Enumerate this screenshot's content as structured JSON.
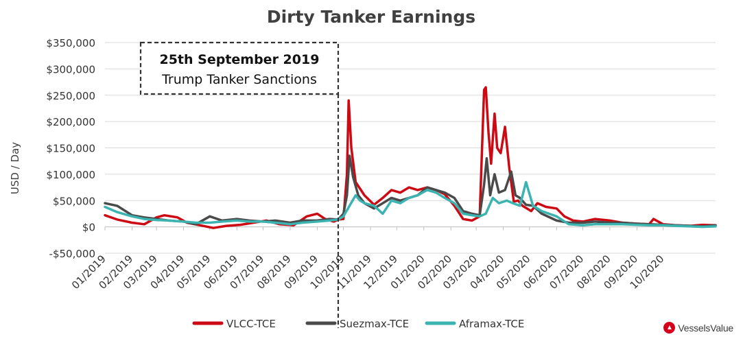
{
  "chart_data": {
    "type": "line",
    "title": "Dirty Tanker Earnings",
    "xlabel": "",
    "ylabel": "USD / Day",
    "ylim": [
      -50000,
      350000
    ],
    "yticks": [
      -50000,
      0,
      50000,
      100000,
      150000,
      200000,
      250000,
      300000,
      350000
    ],
    "ytick_labels": [
      "-$50,000",
      "$0",
      "$50,000",
      "$100,000",
      "$150,000",
      "$200,000",
      "$250,000",
      "$300,000",
      "$350,000"
    ],
    "xlim": [
      "2019-01-01",
      "2020-11-30"
    ],
    "xtick_labels": [
      "01/2019",
      "02/2019",
      "03/2019",
      "04/2019",
      "05/2019",
      "06/2019",
      "07/2019",
      "08/2019",
      "09/2019",
      "10/2019",
      "11/2019",
      "12/2019",
      "01/2020",
      "02/2020",
      "03/2020",
      "04/2020",
      "05/2020",
      "06/2020",
      "07/2020",
      "08/2020",
      "09/2020",
      "10/2020"
    ],
    "xtick_dates": [
      "2019-01-01",
      "2019-02-01",
      "2019-03-01",
      "2019-04-01",
      "2019-05-01",
      "2019-06-01",
      "2019-07-01",
      "2019-08-01",
      "2019-09-01",
      "2019-10-01",
      "2019-11-01",
      "2019-12-01",
      "2020-01-01",
      "2020-02-01",
      "2020-03-01",
      "2020-04-01",
      "2020-05-01",
      "2020-06-01",
      "2020-07-01",
      "2020-08-01",
      "2020-09-01",
      "2020-10-01"
    ],
    "grid": true,
    "legend": "bottom",
    "annotation": {
      "date": "2019-09-25",
      "line1": "25th September 2019",
      "line2": "Trump Tanker Sanctions"
    },
    "series": [
      {
        "name": "VLCC-TCE",
        "color": "#cc0a14",
        "x": [
          "2019-01-01",
          "2019-01-15",
          "2019-02-01",
          "2019-02-15",
          "2019-03-01",
          "2019-03-10",
          "2019-03-25",
          "2019-04-05",
          "2019-04-20",
          "2019-05-05",
          "2019-05-20",
          "2019-06-05",
          "2019-06-20",
          "2019-07-05",
          "2019-07-20",
          "2019-08-05",
          "2019-08-20",
          "2019-09-01",
          "2019-09-10",
          "2019-09-20",
          "2019-09-25",
          "2019-10-01",
          "2019-10-05",
          "2019-10-07",
          "2019-10-10",
          "2019-10-15",
          "2019-10-25",
          "2019-11-05",
          "2019-11-15",
          "2019-11-25",
          "2019-12-05",
          "2019-12-15",
          "2019-12-25",
          "2020-01-05",
          "2020-01-15",
          "2020-01-25",
          "2020-02-05",
          "2020-02-15",
          "2020-02-25",
          "2020-03-05",
          "2020-03-10",
          "2020-03-12",
          "2020-03-15",
          "2020-03-18",
          "2020-03-22",
          "2020-03-25",
          "2020-03-29",
          "2020-04-03",
          "2020-04-08",
          "2020-04-13",
          "2020-04-18",
          "2020-04-23",
          "2020-04-28",
          "2020-05-03",
          "2020-05-10",
          "2020-05-20",
          "2020-06-01",
          "2020-06-10",
          "2020-06-20",
          "2020-07-01",
          "2020-07-15",
          "2020-08-01",
          "2020-08-15",
          "2020-09-01",
          "2020-09-15",
          "2020-09-20",
          "2020-10-01",
          "2020-10-15",
          "2020-11-01",
          "2020-11-15",
          "2020-11-30"
        ],
        "y": [
          22000,
          14000,
          8000,
          5000,
          18000,
          22000,
          18000,
          8000,
          3000,
          -2000,
          2000,
          4000,
          8000,
          12000,
          5000,
          3000,
          20000,
          25000,
          15000,
          10000,
          14000,
          15000,
          100000,
          240000,
          150000,
          85000,
          60000,
          42000,
          55000,
          70000,
          65000,
          75000,
          70000,
          75000,
          70000,
          62000,
          40000,
          15000,
          12000,
          20000,
          260000,
          265000,
          180000,
          120000,
          215000,
          150000,
          140000,
          190000,
          110000,
          48000,
          50000,
          40000,
          35000,
          30000,
          45000,
          38000,
          35000,
          20000,
          12000,
          10000,
          15000,
          12000,
          8000,
          6000,
          5000,
          15000,
          5000,
          3000,
          2000,
          4000,
          3000
        ]
      },
      {
        "name": "Suezmax-TCE",
        "color": "#4a4a4a",
        "x": [
          "2019-01-01",
          "2019-01-15",
          "2019-02-01",
          "2019-02-15",
          "2019-03-01",
          "2019-03-15",
          "2019-04-01",
          "2019-04-15",
          "2019-05-01",
          "2019-05-15",
          "2019-06-01",
          "2019-06-15",
          "2019-07-01",
          "2019-07-15",
          "2019-08-01",
          "2019-08-15",
          "2019-09-01",
          "2019-09-15",
          "2019-09-25",
          "2019-10-01",
          "2019-10-05",
          "2019-10-08",
          "2019-10-12",
          "2019-10-18",
          "2019-10-25",
          "2019-11-05",
          "2019-11-15",
          "2019-11-25",
          "2019-12-05",
          "2019-12-15",
          "2019-12-25",
          "2020-01-05",
          "2020-01-15",
          "2020-01-25",
          "2020-02-05",
          "2020-02-15",
          "2020-02-25",
          "2020-03-05",
          "2020-03-10",
          "2020-03-13",
          "2020-03-17",
          "2020-03-22",
          "2020-03-27",
          "2020-04-03",
          "2020-04-10",
          "2020-04-15",
          "2020-04-20",
          "2020-04-27",
          "2020-05-05",
          "2020-05-15",
          "2020-06-01",
          "2020-06-15",
          "2020-07-01",
          "2020-07-15",
          "2020-08-01",
          "2020-08-15",
          "2020-09-01",
          "2020-09-15",
          "2020-10-01",
          "2020-10-15",
          "2020-11-01",
          "2020-11-15",
          "2020-11-30"
        ],
        "y": [
          45000,
          40000,
          22000,
          18000,
          15000,
          12000,
          10000,
          5000,
          20000,
          12000,
          15000,
          12000,
          10000,
          12000,
          8000,
          12000,
          12000,
          15000,
          14000,
          25000,
          60000,
          135000,
          95000,
          60000,
          45000,
          35000,
          45000,
          55000,
          50000,
          55000,
          60000,
          75000,
          70000,
          65000,
          55000,
          30000,
          25000,
          22000,
          80000,
          130000,
          60000,
          100000,
          65000,
          70000,
          105000,
          60000,
          55000,
          42000,
          40000,
          25000,
          12000,
          8000,
          8000,
          10000,
          8000,
          8000,
          6000,
          5000,
          4000,
          3000,
          2000,
          1000,
          3000
        ]
      },
      {
        "name": "Aframax-TCE",
        "color": "#3bb3b0",
        "x": [
          "2019-01-01",
          "2019-01-15",
          "2019-02-01",
          "2019-02-15",
          "2019-03-01",
          "2019-03-15",
          "2019-04-01",
          "2019-04-15",
          "2019-05-01",
          "2019-05-15",
          "2019-06-01",
          "2019-06-15",
          "2019-07-01",
          "2019-07-15",
          "2019-08-01",
          "2019-08-15",
          "2019-09-01",
          "2019-09-15",
          "2019-09-25",
          "2019-10-01",
          "2019-10-08",
          "2019-10-15",
          "2019-10-20",
          "2019-10-25",
          "2019-11-05",
          "2019-11-15",
          "2019-11-25",
          "2019-12-05",
          "2019-12-15",
          "2019-12-25",
          "2020-01-05",
          "2020-01-15",
          "2020-01-25",
          "2020-02-05",
          "2020-02-15",
          "2020-02-25",
          "2020-03-05",
          "2020-03-12",
          "2020-03-20",
          "2020-03-27",
          "2020-04-05",
          "2020-04-12",
          "2020-04-20",
          "2020-04-27",
          "2020-05-05",
          "2020-05-15",
          "2020-06-01",
          "2020-06-15",
          "2020-07-01",
          "2020-07-15",
          "2020-08-01",
          "2020-08-15",
          "2020-09-01",
          "2020-09-15",
          "2020-10-01",
          "2020-10-15",
          "2020-11-01",
          "2020-11-15",
          "2020-11-30"
        ],
        "y": [
          38000,
          28000,
          20000,
          15000,
          13000,
          12000,
          10000,
          8000,
          8000,
          10000,
          12000,
          10000,
          10000,
          8000,
          5000,
          8000,
          10000,
          12000,
          14000,
          20000,
          40000,
          60000,
          50000,
          45000,
          40000,
          25000,
          50000,
          45000,
          55000,
          60000,
          70000,
          65000,
          55000,
          45000,
          25000,
          22000,
          20000,
          25000,
          55000,
          45000,
          50000,
          45000,
          40000,
          85000,
          40000,
          30000,
          20000,
          5000,
          3000,
          5000,
          5000,
          5000,
          4000,
          3000,
          3000,
          2000,
          1000,
          0,
          1000
        ]
      }
    ]
  },
  "brand": {
    "name": "VesselsValue"
  }
}
